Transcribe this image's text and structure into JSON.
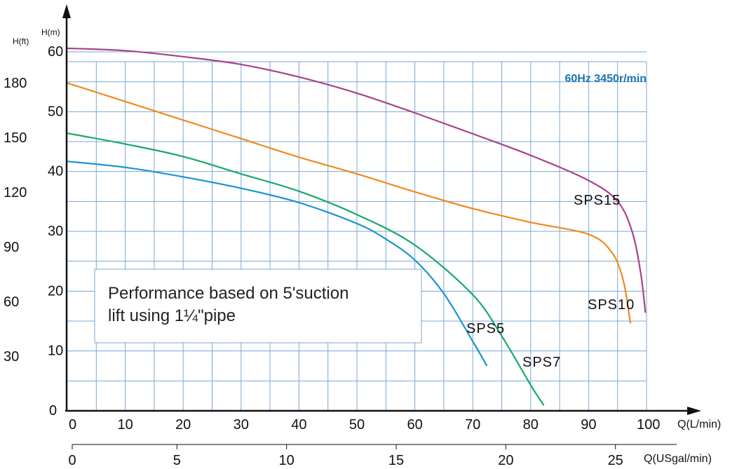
{
  "chart_data": {
    "type": "line",
    "condition": "60Hz 3450r/min",
    "note_line1": "Performance based on 5'suction",
    "note_line2": "lift using 1¼\"pipe",
    "xlabel_lmin": "Q(L/min)",
    "xlabel_usgal": "Q(USgal/min)",
    "ylabel_m": "H(m)",
    "ylabel_ft": "H(ft)",
    "xlim_lmin": [
      0,
      100
    ],
    "ylim_m": [
      0,
      60
    ],
    "x_ticks_lmin": [
      "0",
      "10",
      "20",
      "30",
      "40",
      "50",
      "60",
      "70",
      "80",
      "90",
      "100"
    ],
    "x_ticks_usgal": [
      "0",
      "5",
      "10",
      "15",
      "20",
      "25"
    ],
    "y_ticks_m": [
      "0",
      "10",
      "20",
      "30",
      "40",
      "50",
      "60"
    ],
    "y_ticks_ft": [
      "30",
      "60",
      "90",
      "120",
      "150",
      "180"
    ],
    "grid": true,
    "colors": {
      "grid": "#7aa7d6",
      "axis": "#111111",
      "condition": "#1a73b0"
    },
    "series": [
      {
        "name": "SPS5",
        "color": "#1a94cf",
        "points": [
          [
            0,
            41.7
          ],
          [
            10,
            40.7
          ],
          [
            20,
            39.1
          ],
          [
            30,
            37.2
          ],
          [
            40,
            34.8
          ],
          [
            50,
            31.3
          ],
          [
            55,
            28.7
          ],
          [
            60,
            25.2
          ],
          [
            65,
            19.6
          ],
          [
            70,
            11.6
          ],
          [
            72.4,
            7.6
          ]
        ]
      },
      {
        "name": "SPS7",
        "color": "#17a86a",
        "points": [
          [
            0,
            46.4
          ],
          [
            10,
            44.6
          ],
          [
            20,
            42.5
          ],
          [
            30,
            39.6
          ],
          [
            40,
            36.7
          ],
          [
            50,
            32.8
          ],
          [
            60,
            27.7
          ],
          [
            70,
            19.4
          ],
          [
            75,
            12.5
          ],
          [
            80,
            4.3
          ],
          [
            82.2,
            1.0
          ]
        ]
      },
      {
        "name": "SPS10",
        "color": "#f08a1c",
        "points": [
          [
            0,
            54.8
          ],
          [
            10,
            51.7
          ],
          [
            20,
            48.6
          ],
          [
            30,
            45.5
          ],
          [
            40,
            42.4
          ],
          [
            50,
            39.6
          ],
          [
            60,
            36.6
          ],
          [
            70,
            33.8
          ],
          [
            80,
            31.5
          ],
          [
            90,
            29.5
          ],
          [
            94,
            26.5
          ],
          [
            96,
            21.7
          ],
          [
            97.2,
            14.7
          ]
        ]
      },
      {
        "name": "SPS15",
        "color": "#a8428a",
        "points": [
          [
            0,
            60.6
          ],
          [
            10,
            60.2
          ],
          [
            20,
            59.2
          ],
          [
            30,
            57.9
          ],
          [
            40,
            55.8
          ],
          [
            50,
            53.1
          ],
          [
            60,
            49.8
          ],
          [
            70,
            46.3
          ],
          [
            80,
            42.7
          ],
          [
            90,
            38.5
          ],
          [
            95,
            35.0
          ],
          [
            97.5,
            30.0
          ],
          [
            99,
            23.0
          ],
          [
            99.8,
            16.5
          ]
        ]
      }
    ]
  }
}
